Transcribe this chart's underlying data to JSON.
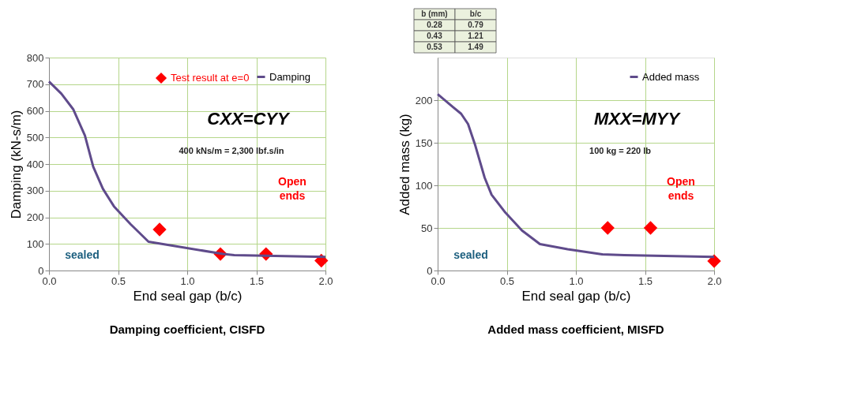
{
  "chart_data": [
    {
      "type": "line",
      "title": "Damping coefficient, CISFD",
      "xlabel": "End seal gap (b/c)",
      "ylabel": "Damping  (kN-s/m)",
      "xlim": [
        0,
        2
      ],
      "xticks": [
        {
          "value": 0,
          "label": "0.0"
        },
        {
          "value": 0.5,
          "label": "0.5"
        },
        {
          "value": 1,
          "label": "1.0"
        },
        {
          "value": 1.5,
          "label": "1.5"
        },
        {
          "value": 2,
          "label": "2.0"
        }
      ],
      "ylim": [
        0,
        800
      ],
      "yticks": [
        0,
        100,
        200,
        300,
        400,
        500,
        600,
        700,
        800
      ],
      "grid": true,
      "legend": "top right",
      "series": [
        {
          "name": "Damping",
          "color": "#5f4b8b",
          "marker": "none",
          "x": [
            0,
            0.09,
            0.175,
            0.26,
            0.32,
            0.39,
            0.47,
            0.59,
            0.72,
            0.92,
            1.26,
            1.34,
            2.0
          ],
          "values": [
            710,
            664,
            606,
            507,
            390,
            307,
            241,
            174,
            108,
            91,
            62,
            58,
            51
          ]
        },
        {
          "name": "Test result at e=0",
          "type": "scatter",
          "color": "#ff0000",
          "marker": "diamond",
          "x": [
            0.8,
            1.24,
            1.57,
            1.97
          ],
          "values": [
            154,
            62,
            62,
            37
          ]
        }
      ],
      "annotations": [
        "CXX=CYY",
        "400 kNs/m = 2,300 lbf.s/in",
        "sealed",
        "Open\nends"
      ]
    },
    {
      "type": "line",
      "title": "Added mass coefficient, MISFD",
      "xlabel": "End seal gap (b/c)",
      "ylabel": "Added mass (kg)",
      "xlim": [
        0,
        2
      ],
      "xticks": [
        {
          "value": 0,
          "label": "0.0"
        },
        {
          "value": 0.5,
          "label": "0.5"
        },
        {
          "value": 1,
          "label": "1.0"
        },
        {
          "value": 1.5,
          "label": "1.5"
        },
        {
          "value": 2,
          "label": "2.0"
        }
      ],
      "ylim": [
        0,
        250
      ],
      "yticks": [
        0,
        50,
        100,
        150,
        200
      ],
      "grid": true,
      "legend": "top right",
      "series": [
        {
          "name": "Added mass",
          "color": "#5f4b8b",
          "marker": "none",
          "x": [
            0,
            0.11,
            0.17,
            0.22,
            0.27,
            0.34,
            0.39,
            0.49,
            0.61,
            0.74,
            0.94,
            1.19,
            1.35,
            2.0
          ],
          "values": [
            207,
            192,
            184,
            172,
            148,
            109,
            89,
            68,
            47,
            31,
            25,
            19,
            18,
            16
          ]
        },
        {
          "type": "scatter",
          "color": "#ff0000",
          "marker": "diamond",
          "x": [
            1.23,
            1.54,
            2.0
          ],
          "values": [
            50,
            50,
            11
          ]
        }
      ],
      "annotations": [
        "MXX=MYY",
        "100 kg = 220 lb",
        "sealed",
        "Open\nends",
        "b (mm)",
        "b/c",
        "0.28",
        "0.79",
        "0.43",
        "1.21",
        "0.53",
        "1.49"
      ]
    }
  ]
}
